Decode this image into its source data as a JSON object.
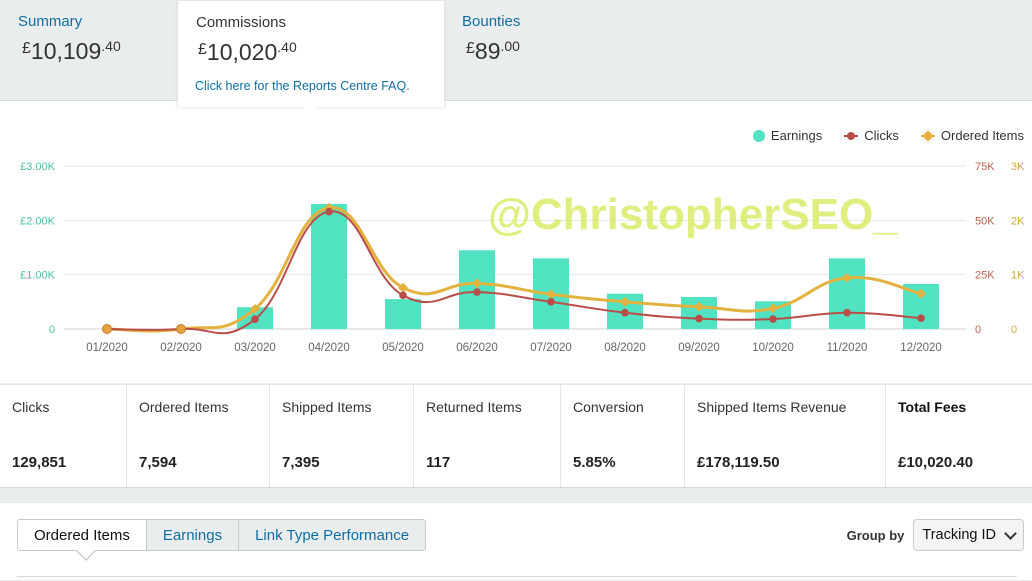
{
  "tabs": {
    "summary": {
      "title": "Summary",
      "currency": "£",
      "whole": "10,109",
      "decimal": ".40"
    },
    "commissions": {
      "title": "Commissions",
      "currency": "£",
      "whole": "10,020",
      "decimal": ".40",
      "faq_link": "Click here for the Reports Centre FAQ."
    },
    "bounties": {
      "title": "Bounties",
      "currency": "£",
      "whole": "89",
      "decimal": ".00"
    }
  },
  "watermark": "@ChristopherSEO_",
  "colors": {
    "earnings": "#50e2c1",
    "clicks": "#b94e48",
    "ordered_items": "#e3b13e",
    "link": "#0f6ea1"
  },
  "chart_data": {
    "type": "bar",
    "categories": [
      "01/2020",
      "02/2020",
      "03/2020",
      "04/2020",
      "05/2020",
      "06/2020",
      "07/2020",
      "08/2020",
      "09/2020",
      "10/2020",
      "11/2020",
      "12/2020"
    ],
    "legend": [
      "Earnings",
      "Clicks",
      "Ordered Items"
    ],
    "legend_position": "top-right",
    "grid": true,
    "axes": {
      "earnings": {
        "ticks": [
          "0",
          "£1.00K",
          "£2.00K",
          "£3.00K"
        ],
        "range": [
          0,
          3000
        ],
        "side": "left"
      },
      "clicks": {
        "ticks": [
          "0",
          "25K",
          "50K",
          "75K"
        ],
        "range": [
          0,
          75000
        ],
        "side": "right"
      },
      "ordered_items": {
        "ticks": [
          "0",
          "1K",
          "2K",
          "3K"
        ],
        "range": [
          0,
          3000
        ],
        "side": "right"
      }
    },
    "series": [
      {
        "name": "Earnings",
        "type": "bar",
        "axis": "earnings",
        "values": [
          0,
          0,
          400,
          2300,
          550,
          1450,
          1300,
          650,
          590,
          510,
          1300,
          830
        ]
      },
      {
        "name": "Clicks",
        "type": "line",
        "axis": "clicks",
        "values": [
          0,
          0,
          4500,
          54000,
          15500,
          17000,
          12500,
          7500,
          4800,
          4600,
          7500,
          5000
        ]
      },
      {
        "name": "Ordered Items",
        "type": "line",
        "axis": "ordered_items",
        "values": [
          0,
          0,
          370,
          2230,
          760,
          840,
          640,
          500,
          410,
          380,
          940,
          650
        ]
      }
    ]
  },
  "stats": [
    {
      "label": "Clicks",
      "value": "129,851"
    },
    {
      "label": "Ordered Items",
      "value": "7,594"
    },
    {
      "label": "Shipped Items",
      "value": "7,395"
    },
    {
      "label": "Returned Items",
      "value": "117"
    },
    {
      "label": "Conversion",
      "value": "5.85%"
    },
    {
      "label": "Shipped Items Revenue",
      "value": "£178,119.50"
    },
    {
      "label": "Total Fees",
      "value": "£10,020.40"
    }
  ],
  "subtabs": [
    "Ordered Items",
    "Earnings",
    "Link Type Performance"
  ],
  "group_by": {
    "label": "Group by",
    "selected": "Tracking ID"
  }
}
